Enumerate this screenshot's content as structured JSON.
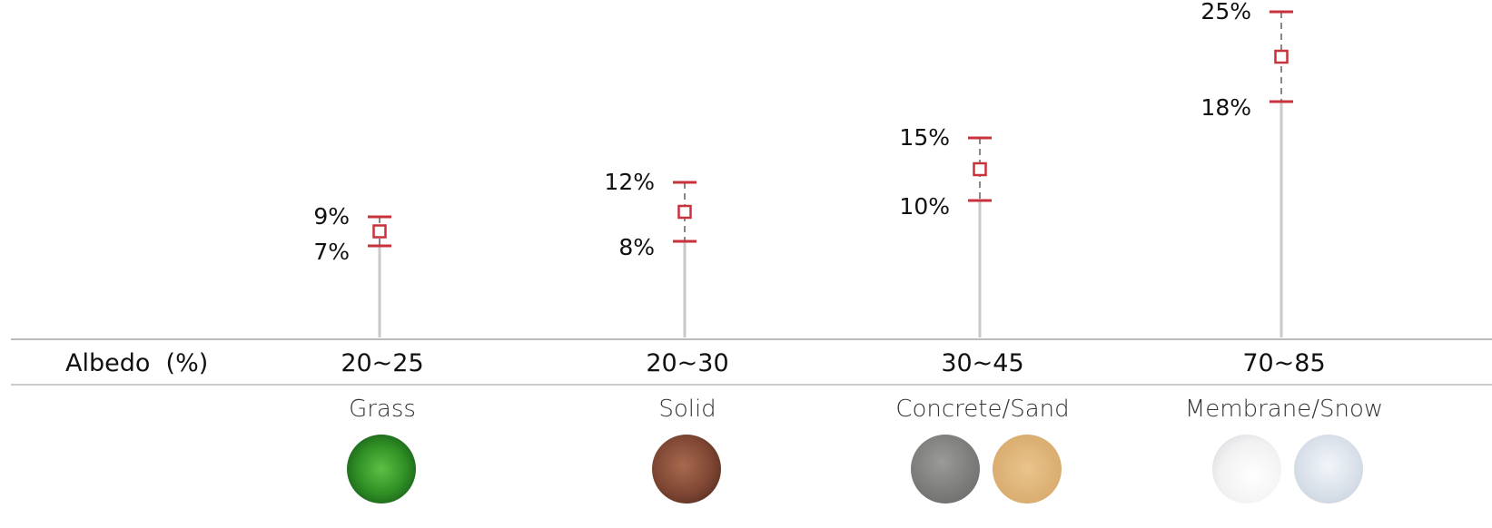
{
  "chart_data": {
    "type": "scatter",
    "row_label": "Albedo  (%)",
    "categories": [
      {
        "albedo": "20~25",
        "surface": "Grass",
        "low": 7,
        "high": 9,
        "low_label": "7%",
        "high_label": "9%",
        "swatches": [
          "grass"
        ]
      },
      {
        "albedo": "20~30",
        "surface": "Solid",
        "low": 8,
        "high": 12,
        "low_label": "8%",
        "high_label": "12%",
        "swatches": [
          "soil"
        ]
      },
      {
        "albedo": "30~45",
        "surface": "Concrete/Sand",
        "low": 10,
        "high": 15,
        "low_label": "10%",
        "high_label": "15%",
        "swatches": [
          "concrete",
          "sand"
        ]
      },
      {
        "albedo": "70~85",
        "surface": "Membrane/Snow",
        "low": 18,
        "high": 25,
        "low_label": "18%",
        "high_label": "25%",
        "swatches": [
          "membrane",
          "snow"
        ]
      }
    ],
    "colors": {
      "marker": "#c8323a",
      "stem": "#c9c9c9",
      "dash": "#888888",
      "axis": "#bbbbbb"
    }
  }
}
